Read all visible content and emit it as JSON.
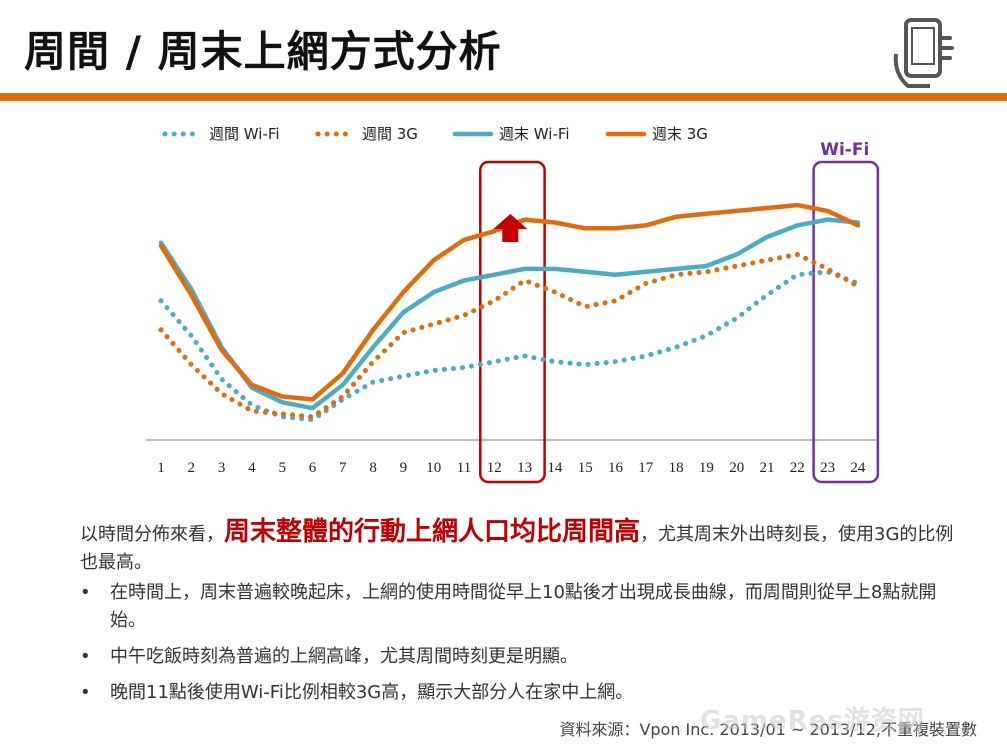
{
  "header": {
    "title": "周間 / 周末上網方式分析",
    "icon": "hand-phone-icon",
    "accent_color": "#e36c0a"
  },
  "chart_data": {
    "type": "line",
    "categories": [
      "1",
      "2",
      "3",
      "4",
      "5",
      "6",
      "7",
      "8",
      "9",
      "10",
      "11",
      "12",
      "13",
      "14",
      "15",
      "16",
      "17",
      "18",
      "19",
      "20",
      "21",
      "22",
      "23",
      "24"
    ],
    "ylim": [
      0,
      100
    ],
    "grid": false,
    "legend_position": "top",
    "series": [
      {
        "name": "週間 Wi-Fi",
        "style": "dotted",
        "color": "#4bacc6",
        "values": [
          48,
          36,
          21,
          12,
          8,
          7,
          14,
          20,
          22,
          24,
          25,
          27,
          29,
          27,
          26,
          27,
          29,
          32,
          36,
          42,
          50,
          57,
          58,
          54
        ]
      },
      {
        "name": "週間 3G",
        "style": "dotted",
        "color": "#e36c0a",
        "values": [
          38,
          26,
          16,
          10,
          9,
          8,
          15,
          27,
          37,
          40,
          43,
          48,
          55,
          51,
          46,
          48,
          54,
          57,
          58,
          60,
          62,
          64,
          59,
          53
        ]
      },
      {
        "name": "週末 Wi-Fi",
        "style": "solid",
        "color": "#4bacc6",
        "values": [
          68,
          52,
          32,
          18,
          13,
          11,
          19,
          32,
          44,
          51,
          55,
          57,
          59,
          59,
          58,
          57,
          58,
          59,
          60,
          64,
          70,
          74,
          76,
          75
        ]
      },
      {
        "name": "週末 3G",
        "style": "solid",
        "color": "#e36c0a",
        "values": [
          67,
          50,
          31,
          19,
          15,
          14,
          23,
          38,
          51,
          62,
          69,
          72,
          76,
          75,
          73,
          73,
          74,
          77,
          78,
          79,
          80,
          81,
          79,
          74
        ]
      }
    ],
    "annotations": {
      "highlight_12_13_color": "#c00000",
      "highlight_23_24_label": "Wi-Fi",
      "highlight_23_24_color": "#7030a0",
      "arrow_color": "#c00000"
    }
  },
  "body": {
    "intro_pre": "以時間分佈來看，",
    "intro_highlight": "周末整體的行動上網人口均比周間高",
    "intro_post": "，尤其周末外出時刻長，使用3G的比例也最高。",
    "bullet_symbol": "•",
    "bullets": [
      "在時間上，周末普遍較晚起床，上網的使用時間從早上10點後才出現成長曲線，而周間則從早上8點就開始。",
      "中午吃飯時刻為普遍的上網高峰，尤其周間時刻更是明顯。",
      "晚間11點後使用Wi-Fi比例相較3G高，顯示大部分人在家中上網。"
    ],
    "highlight_color": "#c00000"
  },
  "footer": {
    "source": "資料來源：Vpon Inc. 2013/01 ~ 2013/12,不重複裝置數",
    "watermark": "GameRes游资网"
  }
}
